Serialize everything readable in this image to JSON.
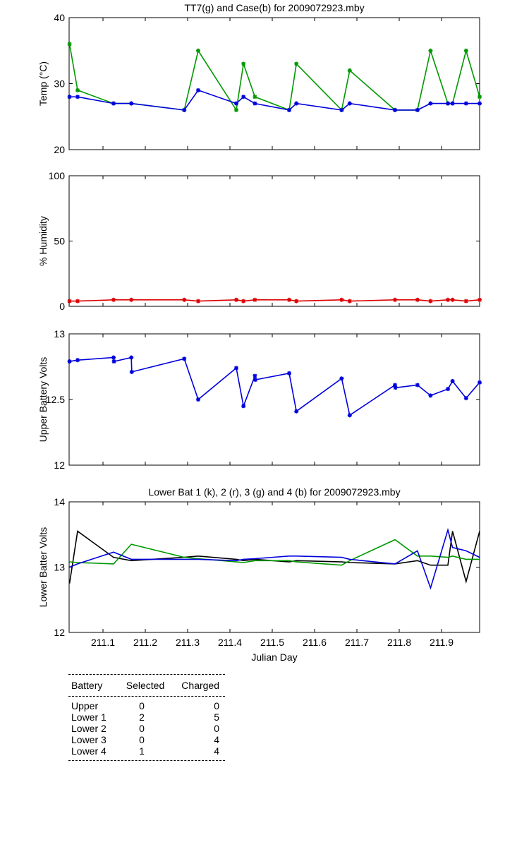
{
  "chart_data": [
    {
      "type": "line",
      "title": "TT7(g) and Case(b) for 2009072923.mby",
      "xlabel": "",
      "ylabel": "Temp  (°C)",
      "xlim": [
        211.02,
        211.99
      ],
      "ylim": [
        20,
        40
      ],
      "yticks": [
        "20",
        "30",
        "40"
      ],
      "series": [
        {
          "name": "TT7",
          "color": "#009900",
          "marker": "*",
          "x": [
            211.021,
            211.04,
            211.125,
            211.167,
            211.292,
            211.325,
            211.415,
            211.432,
            211.459,
            211.54,
            211.557,
            211.664,
            211.683,
            211.79,
            211.843,
            211.874,
            211.915,
            211.926,
            211.958,
            211.99
          ],
          "y": [
            36,
            29,
            27,
            27,
            26,
            35,
            26,
            33,
            28,
            26,
            33,
            26,
            32,
            26,
            26,
            35,
            27,
            27,
            35,
            28
          ]
        },
        {
          "name": "Case",
          "color": "#0000dd",
          "marker": "*",
          "x": [
            211.021,
            211.04,
            211.125,
            211.167,
            211.292,
            211.325,
            211.415,
            211.432,
            211.459,
            211.54,
            211.557,
            211.664,
            211.683,
            211.79,
            211.843,
            211.874,
            211.915,
            211.926,
            211.958,
            211.99
          ],
          "y": [
            28,
            28,
            27,
            27,
            26,
            29,
            27,
            28,
            27,
            26,
            27,
            26,
            27,
            26,
            26,
            27,
            27,
            27,
            27,
            27
          ]
        }
      ]
    },
    {
      "type": "line",
      "title": "",
      "xlabel": "",
      "ylabel": "% Humidity",
      "xlim": [
        211.02,
        211.99
      ],
      "ylim": [
        0,
        100
      ],
      "yticks": [
        "0",
        "50",
        "100"
      ],
      "series": [
        {
          "name": "Humidity",
          "color": "#dd0000",
          "marker": "*",
          "x": [
            211.021,
            211.04,
            211.125,
            211.167,
            211.292,
            211.325,
            211.415,
            211.432,
            211.459,
            211.54,
            211.557,
            211.664,
            211.683,
            211.79,
            211.843,
            211.874,
            211.915,
            211.926,
            211.958,
            211.99
          ],
          "y": [
            4,
            4,
            5,
            5,
            5,
            4,
            5,
            4,
            5,
            5,
            4,
            5,
            4,
            5,
            5,
            4,
            5,
            5,
            4,
            5
          ]
        }
      ]
    },
    {
      "type": "line",
      "title": "",
      "xlabel": "",
      "ylabel": "Upper Battery Volts",
      "xlim": [
        211.02,
        211.99
      ],
      "ylim": [
        12,
        13
      ],
      "yticks": [
        "12",
        "12.5",
        "13"
      ],
      "series": [
        {
          "name": "Upper Battery",
          "color": "#0000dd",
          "marker": "*",
          "x": [
            211.021,
            211.04,
            211.125,
            211.126,
            211.167,
            211.168,
            211.292,
            211.325,
            211.415,
            211.432,
            211.459,
            211.46,
            211.54,
            211.557,
            211.664,
            211.683,
            211.79,
            211.791,
            211.843,
            211.874,
            211.915,
            211.926,
            211.958,
            211.99
          ],
          "y": [
            12.79,
            12.8,
            12.82,
            12.79,
            12.82,
            12.71,
            12.81,
            12.5,
            12.74,
            12.45,
            12.68,
            12.65,
            12.7,
            12.41,
            12.66,
            12.38,
            12.61,
            12.59,
            12.61,
            12.53,
            12.58,
            12.64,
            12.51,
            12.63
          ]
        }
      ]
    },
    {
      "type": "line",
      "title": "Lower Bat 1 (k), 2 (r), 3 (g) and 4 (b) for 2009072923.mby",
      "xlabel": "Julian Day",
      "ylabel": "Lower Batter Volts",
      "xlim": [
        211.02,
        211.99
      ],
      "ylim": [
        12,
        14
      ],
      "yticks": [
        "12",
        "13",
        "14"
      ],
      "xticks": [
        "211.1",
        "211.2",
        "211.3",
        "211.4",
        "211.5",
        "211.6",
        "211.7",
        "211.8",
        "211.9"
      ],
      "series": [
        {
          "name": "Lower Bat 1",
          "color": "#000000",
          "x": [
            211.021,
            211.04,
            211.125,
            211.167,
            211.292,
            211.325,
            211.415,
            211.432,
            211.459,
            211.54,
            211.557,
            211.664,
            211.683,
            211.79,
            211.843,
            211.874,
            211.915,
            211.926,
            211.958,
            211.99
          ],
          "y": [
            12.75,
            13.55,
            13.15,
            13.1,
            13.15,
            13.17,
            13.12,
            13.1,
            13.12,
            13.08,
            13.1,
            13.08,
            13.07,
            13.05,
            13.1,
            13.03,
            13.03,
            13.55,
            12.78,
            13.55
          ]
        },
        {
          "name": "Lower Bat 3",
          "color": "#009900",
          "x": [
            211.021,
            211.04,
            211.125,
            211.167,
            211.292,
            211.325,
            211.415,
            211.432,
            211.459,
            211.54,
            211.557,
            211.664,
            211.683,
            211.79,
            211.843,
            211.874,
            211.915,
            211.926,
            211.958,
            211.99
          ],
          "y": [
            13.08,
            13.07,
            13.05,
            13.35,
            13.15,
            13.13,
            13.08,
            13.07,
            13.1,
            13.1,
            13.08,
            13.03,
            13.1,
            13.42,
            13.17,
            13.17,
            13.15,
            13.17,
            13.12,
            13.12
          ]
        },
        {
          "name": "Lower Bat 4",
          "color": "#0000dd",
          "x": [
            211.021,
            211.04,
            211.125,
            211.167,
            211.292,
            211.325,
            211.415,
            211.432,
            211.459,
            211.54,
            211.557,
            211.664,
            211.683,
            211.79,
            211.843,
            211.874,
            211.915,
            211.926,
            211.958,
            211.99
          ],
          "y": [
            13.0,
            13.05,
            13.23,
            13.12,
            13.12,
            13.12,
            13.1,
            13.12,
            13.13,
            13.17,
            13.17,
            13.15,
            13.12,
            13.05,
            13.25,
            12.68,
            13.57,
            13.3,
            13.25,
            13.15
          ]
        }
      ]
    }
  ],
  "battery_table": {
    "headers": [
      "Battery",
      "Selected",
      "Charged"
    ],
    "rows": [
      [
        "Upper",
        "0",
        "0"
      ],
      [
        "Lower 1",
        "2",
        "5"
      ],
      [
        "Lower 2",
        "0",
        "0"
      ],
      [
        "Lower 3",
        "0",
        "4"
      ],
      [
        "Lower 4",
        "1",
        "4"
      ]
    ]
  }
}
